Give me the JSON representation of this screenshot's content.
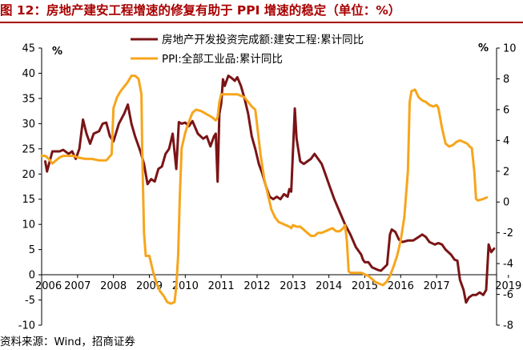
{
  "title": "图 12：房地产建安工程增速的修复有助于 PPI 增速的稳定（单位：%）",
  "source": "资料来源：Wind，招商证券",
  "chart_data": {
    "type": "line",
    "left_unit": "%",
    "right_unit": "%",
    "ylim_left": [
      -10,
      45
    ],
    "ylim_right": [
      -8,
      10
    ],
    "left_ticks": [
      -10,
      -5,
      0,
      5,
      10,
      15,
      20,
      25,
      30,
      35,
      40,
      45
    ],
    "right_ticks": [
      -8,
      -6,
      -4,
      -2,
      0,
      2,
      4,
      6,
      8,
      10
    ],
    "x_ticks": [
      {
        "x": 2006,
        "label": "2006"
      },
      {
        "x": 2007,
        "label": "2007"
      },
      {
        "x": 2008,
        "label": "2008"
      },
      {
        "x": 2009,
        "label": "2009"
      },
      {
        "x": 2010,
        "label": "2010"
      },
      {
        "x": 2011,
        "label": "2011"
      },
      {
        "x": 2012,
        "label": "2012"
      },
      {
        "x": 2013,
        "label": "2013"
      },
      {
        "x": 2014,
        "label": "2014"
      },
      {
        "x": 2015,
        "label": "2015"
      },
      {
        "x": 2016,
        "label": "2016"
      },
      {
        "x": 2017,
        "label": "2017"
      },
      {
        "x": 2019,
        "label": "2019"
      }
    ],
    "series": [
      {
        "name": "房地产开发投资完成额:建安工程:累计同比",
        "axis": "left",
        "color": "#7a1416",
        "points": [
          [
            2006.1,
            22.5
          ],
          [
            2006.15,
            20.5
          ],
          [
            2006.3,
            24.5
          ],
          [
            2006.5,
            24.5
          ],
          [
            2006.6,
            24.8
          ],
          [
            2006.75,
            24.0
          ],
          [
            2006.85,
            24.5
          ],
          [
            2006.95,
            23.0
          ],
          [
            2007.05,
            25.0
          ],
          [
            2007.15,
            30.8
          ],
          [
            2007.25,
            28.0
          ],
          [
            2007.35,
            26.0
          ],
          [
            2007.45,
            28.0
          ],
          [
            2007.6,
            28.5
          ],
          [
            2007.7,
            30.0
          ],
          [
            2007.8,
            30.2
          ],
          [
            2007.9,
            27.5
          ],
          [
            2008.0,
            26.5
          ],
          [
            2008.15,
            30.0
          ],
          [
            2008.3,
            32.0
          ],
          [
            2008.4,
            33.8
          ],
          [
            2008.5,
            30.0
          ],
          [
            2008.6,
            27.5
          ],
          [
            2008.75,
            24.5
          ],
          [
            2008.85,
            22.0
          ],
          [
            2008.95,
            18.0
          ],
          [
            2009.05,
            19.0
          ],
          [
            2009.15,
            18.5
          ],
          [
            2009.25,
            21.0
          ],
          [
            2009.35,
            21.5
          ],
          [
            2009.45,
            24.0
          ],
          [
            2009.55,
            25.0
          ],
          [
            2009.65,
            28.0
          ],
          [
            2009.75,
            21.0
          ],
          [
            2009.82,
            30.3
          ],
          [
            2009.9,
            30.0
          ],
          [
            2010.0,
            30.2
          ],
          [
            2010.1,
            29.5
          ],
          [
            2010.2,
            30.5
          ],
          [
            2010.35,
            28.0
          ],
          [
            2010.5,
            27.0
          ],
          [
            2010.6,
            27.5
          ],
          [
            2010.7,
            25.5
          ],
          [
            2010.8,
            27.5
          ],
          [
            2010.85,
            28.0
          ],
          [
            2010.9,
            18.5
          ],
          [
            2010.95,
            32.0
          ],
          [
            2011.0,
            34.0
          ],
          [
            2011.05,
            38.8
          ],
          [
            2011.1,
            37.5
          ],
          [
            2011.2,
            39.5
          ],
          [
            2011.3,
            39.0
          ],
          [
            2011.38,
            38.5
          ],
          [
            2011.45,
            39.2
          ],
          [
            2011.55,
            37.5
          ],
          [
            2011.65,
            35.0
          ],
          [
            2011.75,
            32.0
          ],
          [
            2011.85,
            27.5
          ],
          [
            2011.95,
            25.0
          ],
          [
            2012.05,
            22.0
          ],
          [
            2012.15,
            20.0
          ],
          [
            2012.25,
            17.5
          ],
          [
            2012.35,
            15.5
          ],
          [
            2012.45,
            15.0
          ],
          [
            2012.55,
            15.5
          ],
          [
            2012.65,
            15.0
          ],
          [
            2012.75,
            16.0
          ],
          [
            2012.85,
            15.5
          ],
          [
            2012.9,
            17.0
          ],
          [
            2012.95,
            16.5
          ],
          [
            2013.05,
            33.0
          ],
          [
            2013.1,
            27.0
          ],
          [
            2013.2,
            22.5
          ],
          [
            2013.3,
            22.0
          ],
          [
            2013.4,
            22.5
          ],
          [
            2013.5,
            23.0
          ],
          [
            2013.6,
            24.0
          ],
          [
            2013.7,
            23.0
          ],
          [
            2013.8,
            22.0
          ],
          [
            2013.9,
            20.0
          ],
          [
            2014.0,
            18.0
          ],
          [
            2014.15,
            15.0
          ],
          [
            2014.3,
            12.5
          ],
          [
            2014.45,
            10.0
          ],
          [
            2014.6,
            8.0
          ],
          [
            2014.75,
            5.5
          ],
          [
            2014.9,
            4.0
          ],
          [
            2014.95,
            3.0
          ],
          [
            2015.0,
            2.5
          ],
          [
            2015.1,
            2.5
          ],
          [
            2015.2,
            1.5
          ],
          [
            2015.35,
            1.0
          ],
          [
            2015.45,
            0.8
          ],
          [
            2015.55,
            1.5
          ],
          [
            2015.62,
            2.0
          ],
          [
            2015.7,
            8.0
          ],
          [
            2015.75,
            9.0
          ],
          [
            2015.85,
            8.5
          ],
          [
            2015.95,
            7.0
          ],
          [
            2016.05,
            6.5
          ],
          [
            2016.2,
            6.8
          ],
          [
            2016.35,
            6.8
          ],
          [
            2016.5,
            7.5
          ],
          [
            2016.6,
            8.0
          ],
          [
            2016.7,
            7.5
          ],
          [
            2016.8,
            6.5
          ],
          [
            2016.95,
            6.0
          ],
          [
            2017.05,
            6.3
          ],
          [
            2017.15,
            6.0
          ],
          [
            2017.25,
            5.0
          ],
          [
            2017.4,
            4.0
          ],
          [
            2017.5,
            3.0
          ],
          [
            2017.58,
            2.8
          ],
          [
            2017.65,
            -1.0
          ],
          [
            2017.75,
            -3.0
          ],
          [
            2017.82,
            -5.5
          ],
          [
            2017.9,
            -4.5
          ],
          [
            2018.0,
            -4.0
          ],
          [
            2018.1,
            -4.0
          ],
          [
            2018.2,
            -3.5
          ],
          [
            2018.3,
            -4.0
          ],
          [
            2018.38,
            -3.0
          ],
          [
            2018.45,
            6.0
          ],
          [
            2018.52,
            4.5
          ],
          [
            2018.6,
            5.2
          ]
        ]
      },
      {
        "name": "PPI:全部工业品:累计同比",
        "axis": "right",
        "color": "#f7a51c",
        "points": [
          [
            2006.0,
            3.0
          ],
          [
            2006.1,
            3.0
          ],
          [
            2006.2,
            2.8
          ],
          [
            2006.3,
            2.5
          ],
          [
            2006.4,
            2.7
          ],
          [
            2006.5,
            2.9
          ],
          [
            2006.6,
            3.0
          ],
          [
            2006.7,
            3.0
          ],
          [
            2006.8,
            3.0
          ],
          [
            2006.9,
            3.0
          ],
          [
            2007.0,
            2.9
          ],
          [
            2007.2,
            2.8
          ],
          [
            2007.4,
            2.8
          ],
          [
            2007.6,
            2.7
          ],
          [
            2007.8,
            2.7
          ],
          [
            2007.95,
            3.1
          ],
          [
            2008.0,
            6.1
          ],
          [
            2008.1,
            6.8
          ],
          [
            2008.2,
            7.2
          ],
          [
            2008.3,
            7.5
          ],
          [
            2008.4,
            7.8
          ],
          [
            2008.5,
            8.2
          ],
          [
            2008.6,
            8.2
          ],
          [
            2008.7,
            8.0
          ],
          [
            2008.78,
            7.0
          ],
          [
            2008.8,
            3.5
          ],
          [
            2008.85,
            -2.0
          ],
          [
            2008.9,
            -3.5
          ],
          [
            2008.95,
            -3.5
          ],
          [
            2009.0,
            -3.5
          ],
          [
            2009.1,
            -4.5
          ],
          [
            2009.2,
            -5.3
          ],
          [
            2009.3,
            -5.8
          ],
          [
            2009.4,
            -6.1
          ],
          [
            2009.5,
            -6.5
          ],
          [
            2009.6,
            -6.6
          ],
          [
            2009.7,
            -6.5
          ],
          [
            2009.75,
            -5.5
          ],
          [
            2009.8,
            -3.5
          ],
          [
            2009.85,
            0.5
          ],
          [
            2009.9,
            3.5
          ],
          [
            2010.0,
            4.5
          ],
          [
            2010.1,
            5.2
          ],
          [
            2010.2,
            5.8
          ],
          [
            2010.3,
            6.0
          ],
          [
            2010.45,
            5.9
          ],
          [
            2010.6,
            5.7
          ],
          [
            2010.75,
            5.5
          ],
          [
            2010.85,
            5.3
          ],
          [
            2010.9,
            5.5
          ],
          [
            2010.95,
            6.5
          ],
          [
            2011.0,
            7.0
          ],
          [
            2011.15,
            7.0
          ],
          [
            2011.3,
            7.0
          ],
          [
            2011.45,
            7.0
          ],
          [
            2011.55,
            6.9
          ],
          [
            2011.65,
            6.8
          ],
          [
            2011.75,
            6.5
          ],
          [
            2011.85,
            6.2
          ],
          [
            2011.95,
            6.0
          ],
          [
            2012.0,
            5.0
          ],
          [
            2012.1,
            3.0
          ],
          [
            2012.2,
            1.5
          ],
          [
            2012.3,
            0.5
          ],
          [
            2012.4,
            -0.5
          ],
          [
            2012.5,
            -1.0
          ],
          [
            2012.6,
            -1.3
          ],
          [
            2012.7,
            -1.4
          ],
          [
            2012.8,
            -1.5
          ],
          [
            2012.9,
            -1.6
          ],
          [
            2012.95,
            -1.7
          ],
          [
            2013.0,
            -1.5
          ],
          [
            2013.1,
            -1.6
          ],
          [
            2013.2,
            -1.6
          ],
          [
            2013.3,
            -1.8
          ],
          [
            2013.4,
            -2.0
          ],
          [
            2013.5,
            -2.2
          ],
          [
            2013.6,
            -2.2
          ],
          [
            2013.7,
            -2.0
          ],
          [
            2013.8,
            -2.0
          ],
          [
            2013.9,
            -1.9
          ],
          [
            2014.0,
            -1.8
          ],
          [
            2014.1,
            -1.7
          ],
          [
            2014.2,
            -1.9
          ],
          [
            2014.3,
            -1.9
          ],
          [
            2014.4,
            -1.7
          ],
          [
            2014.45,
            -1.5
          ],
          [
            2014.5,
            -2.5
          ],
          [
            2014.55,
            -4.5
          ],
          [
            2014.6,
            -4.6
          ],
          [
            2014.7,
            -4.6
          ],
          [
            2014.8,
            -4.6
          ],
          [
            2014.9,
            -4.6
          ],
          [
            2015.0,
            -4.7
          ],
          [
            2015.1,
            -4.8
          ],
          [
            2015.2,
            -5.0
          ],
          [
            2015.3,
            -5.2
          ],
          [
            2015.4,
            -5.3
          ],
          [
            2015.5,
            -5.4
          ],
          [
            2015.6,
            -5.2
          ],
          [
            2015.7,
            -4.8
          ],
          [
            2015.8,
            -4.2
          ],
          [
            2015.9,
            -3.5
          ],
          [
            2016.0,
            -2.5
          ],
          [
            2016.1,
            -1.0
          ],
          [
            2016.2,
            2.0
          ],
          [
            2016.25,
            6.5
          ],
          [
            2016.3,
            7.2
          ],
          [
            2016.4,
            7.3
          ],
          [
            2016.5,
            6.8
          ],
          [
            2016.6,
            6.6
          ],
          [
            2016.7,
            6.5
          ],
          [
            2016.8,
            6.3
          ],
          [
            2016.9,
            6.2
          ],
          [
            2017.0,
            6.3
          ],
          [
            2017.05,
            6.1
          ],
          [
            2017.15,
            4.8
          ],
          [
            2017.25,
            3.8
          ],
          [
            2017.35,
            3.6
          ],
          [
            2017.45,
            3.7
          ],
          [
            2017.55,
            3.9
          ],
          [
            2017.65,
            4.0
          ],
          [
            2017.75,
            3.9
          ],
          [
            2017.85,
            3.8
          ],
          [
            2017.92,
            3.6
          ],
          [
            2017.98,
            3.5
          ],
          [
            2018.05,
            2.0
          ],
          [
            2018.1,
            0.2
          ],
          [
            2018.15,
            0.1
          ],
          [
            2018.3,
            0.2
          ],
          [
            2018.4,
            0.3
          ]
        ]
      }
    ]
  }
}
